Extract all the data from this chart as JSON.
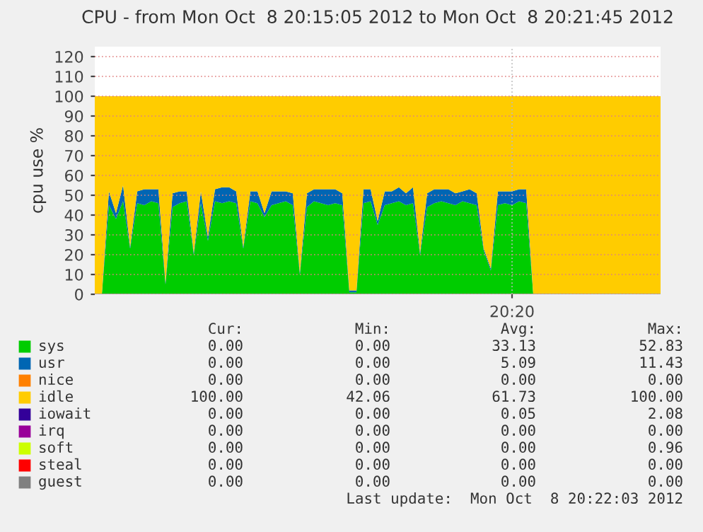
{
  "chart_data": {
    "type": "area",
    "stacked": true,
    "title": "CPU - from Mon Oct  8 20:15:05 2012 to Mon Oct  8 20:21:45 2012",
    "ylabel": "cpu use %",
    "categories": [
      null,
      null,
      null,
      null,
      null,
      null,
      null,
      null,
      null,
      null,
      null,
      null,
      null,
      null,
      null,
      null,
      null,
      null,
      null,
      null,
      null,
      null,
      null,
      null,
      null,
      null,
      null,
      null,
      null,
      null,
      null,
      null,
      null,
      null,
      null,
      null,
      null,
      null,
      null,
      null,
      null,
      null,
      null,
      null,
      null,
      null,
      null,
      null,
      null,
      null,
      null,
      null,
      null,
      null,
      null,
      null,
      null,
      null,
      null,
      "20:20",
      null,
      null,
      null,
      null,
      null,
      null,
      null,
      null,
      null,
      null,
      null,
      null,
      null,
      null,
      null,
      null,
      null,
      null,
      null,
      null,
      null
    ],
    "series": [
      {
        "name": "sys",
        "color": "#00cc00",
        "values": [
          0,
          0,
          45,
          38,
          47,
          23,
          46,
          45,
          47,
          46,
          5,
          44,
          46,
          47,
          20,
          46,
          27,
          47,
          46,
          47,
          46,
          23,
          47,
          46,
          39,
          45,
          46,
          47,
          45,
          10,
          44,
          47,
          46,
          45,
          46,
          45,
          1,
          1,
          46,
          47,
          35,
          45,
          46,
          47,
          45,
          46,
          20,
          44,
          46,
          47,
          46,
          45,
          47,
          46,
          45,
          22,
          12,
          45,
          46,
          45,
          47,
          46,
          0,
          0,
          0,
          0,
          0,
          0,
          0,
          0,
          0,
          0,
          0,
          0,
          0,
          0,
          0,
          0,
          0,
          0,
          0
        ]
      },
      {
        "name": "usr",
        "color": "#0066b3",
        "values": [
          0,
          0,
          7,
          3,
          8,
          1,
          6,
          8,
          6,
          7,
          1,
          7,
          6,
          5,
          1,
          6,
          2,
          6,
          8,
          7,
          6,
          1,
          5,
          6,
          2,
          7,
          6,
          5,
          6,
          1,
          7,
          6,
          7,
          8,
          7,
          6,
          1,
          1,
          7,
          6,
          2,
          7,
          6,
          7,
          6,
          8,
          1,
          7,
          7,
          6,
          7,
          6,
          5,
          7,
          6,
          1,
          1,
          7,
          6,
          7,
          6,
          7,
          0,
          0,
          0,
          0,
          0,
          0,
          0,
          0,
          0,
          0,
          0,
          0,
          0,
          0,
          0,
          0,
          0,
          0,
          0
        ]
      },
      {
        "name": "nice",
        "color": "#ff8000",
        "values": [
          null,
          null,
          null,
          null,
          null,
          null,
          null,
          null,
          null,
          null,
          null,
          null,
          null,
          null,
          null,
          null,
          null,
          null,
          null,
          null,
          null,
          null,
          null,
          null,
          null,
          null,
          null,
          null,
          null,
          null,
          null,
          null,
          null,
          null,
          null,
          null,
          null,
          null,
          null,
          null,
          null,
          null,
          null,
          null,
          null,
          null,
          null,
          null,
          null,
          null,
          null,
          null,
          null,
          null,
          null,
          null,
          null,
          null,
          null,
          null,
          null,
          null,
          null,
          null,
          null,
          null,
          null,
          null,
          null,
          null,
          null,
          null,
          null,
          null,
          null,
          null,
          null,
          null,
          null,
          null,
          null
        ]
      },
      {
        "name": "idle",
        "color": "#ffcc00",
        "values": [
          100,
          100,
          48,
          59,
          45,
          76,
          48,
          47,
          47,
          47,
          94,
          49,
          48,
          48,
          79,
          48,
          71,
          47,
          46,
          46,
          48,
          76,
          48,
          48,
          59,
          48,
          48,
          48,
          49,
          89,
          49,
          47,
          47,
          47,
          47,
          49,
          98,
          98,
          47,
          47,
          63,
          48,
          48,
          46,
          49,
          46,
          79,
          49,
          47,
          47,
          47,
          49,
          48,
          47,
          49,
          77,
          87,
          48,
          48,
          48,
          47,
          47,
          100,
          100,
          100,
          100,
          100,
          100,
          100,
          100,
          100,
          100,
          100,
          100,
          100,
          100,
          100,
          100,
          100,
          100,
          100
        ]
      },
      {
        "name": "iowait",
        "color": "#330099",
        "values": [
          null,
          null,
          null,
          null,
          null,
          null,
          null,
          null,
          null,
          null,
          null,
          null,
          null,
          null,
          null,
          null,
          null,
          null,
          null,
          null,
          null,
          null,
          null,
          null,
          null,
          null,
          null,
          null,
          null,
          null,
          null,
          null,
          null,
          null,
          null,
          null,
          null,
          null,
          null,
          null,
          null,
          null,
          null,
          null,
          null,
          null,
          null,
          null,
          null,
          null,
          null,
          null,
          null,
          null,
          null,
          null,
          null,
          null,
          null,
          null,
          null,
          null,
          null,
          null,
          null,
          null,
          null,
          null,
          null,
          null,
          null,
          null,
          null,
          null,
          null,
          null,
          null,
          null,
          null,
          null,
          null
        ]
      },
      {
        "name": "irq",
        "color": "#990099",
        "values": [
          null,
          null,
          null,
          null,
          null,
          null,
          null,
          null,
          null,
          null,
          null,
          null,
          null,
          null,
          null,
          null,
          null,
          null,
          null,
          null,
          null,
          null,
          null,
          null,
          null,
          null,
          null,
          null,
          null,
          null,
          null,
          null,
          null,
          null,
          null,
          null,
          null,
          null,
          null,
          null,
          null,
          null,
          null,
          null,
          null,
          null,
          null,
          null,
          null,
          null,
          null,
          null,
          null,
          null,
          null,
          null,
          null,
          null,
          null,
          null,
          null,
          null,
          null,
          null,
          null,
          null,
          null,
          null,
          null,
          null,
          null,
          null,
          null,
          null,
          null,
          null,
          null,
          null,
          null,
          null,
          null
        ]
      },
      {
        "name": "soft",
        "color": "#ccff00",
        "values": [
          null,
          null,
          null,
          null,
          null,
          null,
          null,
          null,
          null,
          null,
          null,
          null,
          null,
          null,
          null,
          null,
          null,
          null,
          null,
          null,
          null,
          null,
          null,
          null,
          null,
          null,
          null,
          null,
          null,
          null,
          null,
          null,
          null,
          null,
          null,
          null,
          null,
          null,
          null,
          null,
          null,
          null,
          null,
          null,
          null,
          null,
          null,
          null,
          null,
          null,
          null,
          null,
          null,
          null,
          null,
          null,
          null,
          null,
          null,
          null,
          null,
          null,
          null,
          null,
          null,
          null,
          null,
          null,
          null,
          null,
          null,
          null,
          null,
          null,
          null,
          null,
          null,
          null,
          null,
          null,
          null
        ]
      },
      {
        "name": "steal",
        "color": "#ff0000",
        "values": [
          null,
          null,
          null,
          null,
          null,
          null,
          null,
          null,
          null,
          null,
          null,
          null,
          null,
          null,
          null,
          null,
          null,
          null,
          null,
          null,
          null,
          null,
          null,
          null,
          null,
          null,
          null,
          null,
          null,
          null,
          null,
          null,
          null,
          null,
          null,
          null,
          null,
          null,
          null,
          null,
          null,
          null,
          null,
          null,
          null,
          null,
          null,
          null,
          null,
          null,
          null,
          null,
          null,
          null,
          null,
          null,
          null,
          null,
          null,
          null,
          null,
          null,
          null,
          null,
          null,
          null,
          null,
          null,
          null,
          null,
          null,
          null,
          null,
          null,
          null,
          null,
          null,
          null,
          null,
          null,
          null
        ]
      },
      {
        "name": "guest",
        "color": "#808080",
        "values": [
          null,
          null,
          null,
          null,
          null,
          null,
          null,
          null,
          null,
          null,
          null,
          null,
          null,
          null,
          null,
          null,
          null,
          null,
          null,
          null,
          null,
          null,
          null,
          null,
          null,
          null,
          null,
          null,
          null,
          null,
          null,
          null,
          null,
          null,
          null,
          null,
          null,
          null,
          null,
          null,
          null,
          null,
          null,
          null,
          null,
          null,
          null,
          null,
          null,
          null,
          null,
          null,
          null,
          null,
          null,
          null,
          null,
          null,
          null,
          null,
          null,
          null,
          null,
          null,
          null,
          null,
          null,
          null,
          null,
          null,
          null,
          null,
          null,
          null,
          null,
          null,
          null,
          null,
          null,
          null,
          null
        ]
      }
    ],
    "ylim": [
      0,
      125
    ],
    "yticks": [
      0,
      10,
      20,
      30,
      40,
      50,
      60,
      70,
      80,
      90,
      100,
      110,
      120
    ],
    "grid": true,
    "legend": "bottom",
    "annotations": [
      "Cur:",
      "Min:",
      "Avg:",
      "Max:",
      "0.00",
      "0.00",
      "33.13",
      "52.83",
      "0.00",
      "0.00",
      "5.09",
      "11.43",
      "0.00",
      "0.00",
      "0.00",
      "0.00",
      "100.00",
      "42.06",
      "61.73",
      "100.00",
      "0.00",
      "0.00",
      "0.05",
      "2.08",
      "0.00",
      "0.00",
      "0.00",
      "0.00",
      "0.00",
      "0.00",
      "0.00",
      "0.96",
      "0.00",
      "0.00",
      "0.00",
      "0.00",
      "0.00",
      "0.00",
      "0.00",
      "0.00",
      "Last update:  Mon Oct  8 20:22:03 2012"
    ]
  }
}
